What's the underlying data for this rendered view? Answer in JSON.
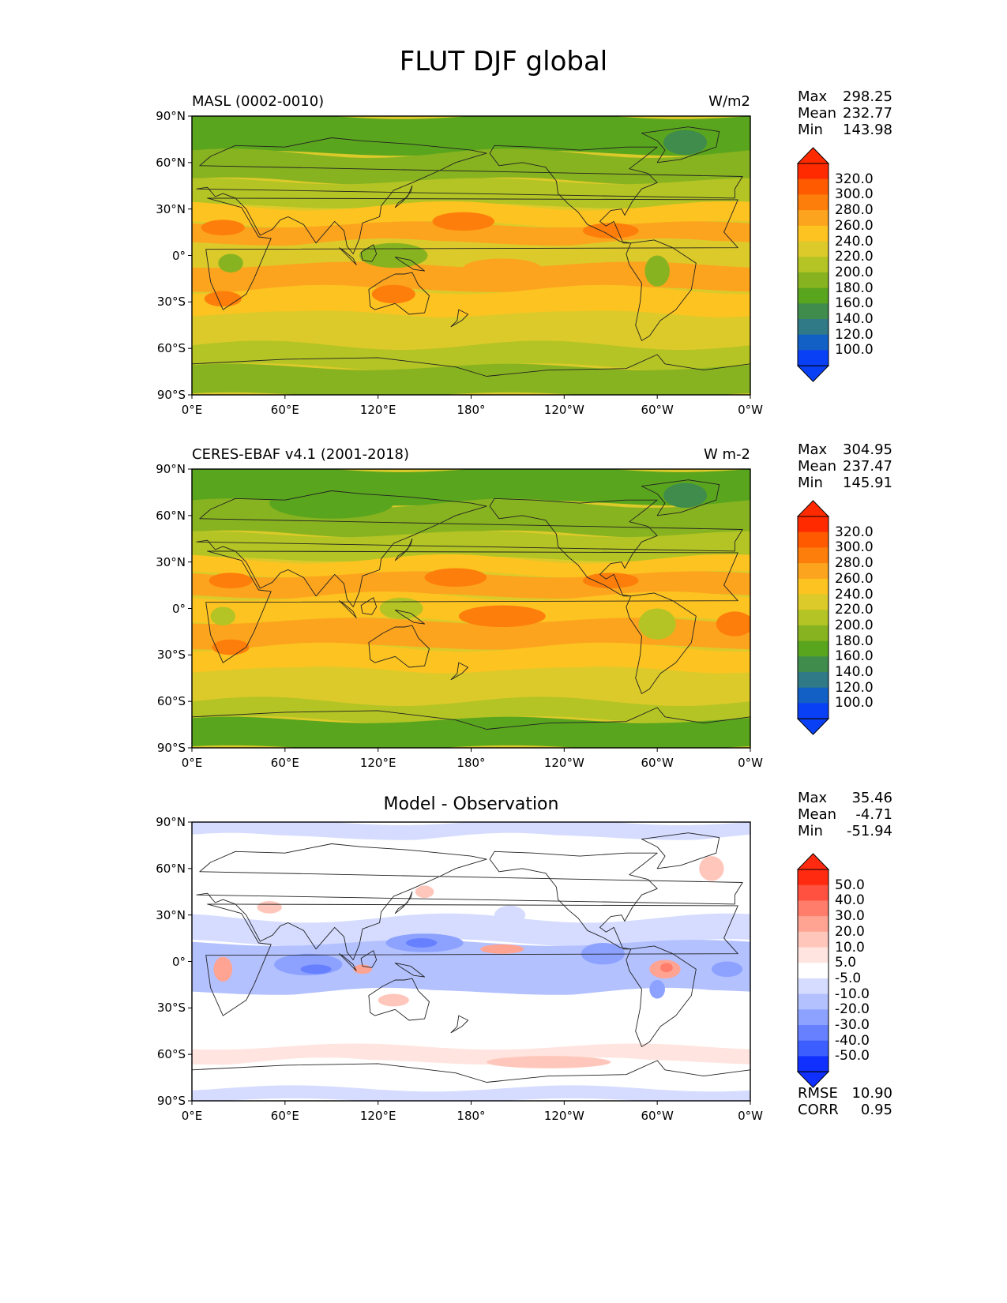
{
  "title": "FLUT DJF global",
  "axes": {
    "lat_ticks": [
      "90°N",
      "60°N",
      "30°N",
      "0°",
      "30°S",
      "60°S",
      "90°S"
    ],
    "lon_ticks": [
      "0°E",
      "60°E",
      "120°E",
      "180°",
      "120°W",
      "60°W",
      "0°W"
    ]
  },
  "panels": [
    {
      "id": "model",
      "left_title": "MASL (0002-0010)",
      "center_title": "",
      "units": "W/m2",
      "stats": [
        {
          "label": "Max",
          "value": "298.25"
        },
        {
          "label": "Mean",
          "value": "232.77"
        },
        {
          "label": "Min",
          "value": "143.98"
        }
      ],
      "colorbar": {
        "labels": [
          "320.0",
          "300.0",
          "280.0",
          "260.0",
          "240.0",
          "220.0",
          "200.0",
          "180.0",
          "160.0",
          "140.0",
          "120.0",
          "100.0"
        ],
        "colors": [
          "#ff2a00",
          "#ff5a00",
          "#fe7e0b",
          "#fca41e",
          "#fdc321",
          "#dcca2a",
          "#b3c424",
          "#88b320",
          "#5aa51e",
          "#3f8c4d",
          "#2f7a86",
          "#1260c6",
          "#0a40f5"
        ],
        "top_extend_color": "#ff2a00",
        "bottom_extend_color": "#0a40f5"
      }
    },
    {
      "id": "obs",
      "left_title": "CERES-EBAF v4.1 (2001-2018)",
      "center_title": "",
      "units": "W m-2",
      "stats": [
        {
          "label": "Max",
          "value": "304.95"
        },
        {
          "label": "Mean",
          "value": "237.47"
        },
        {
          "label": "Min",
          "value": "145.91"
        }
      ],
      "colorbar": {
        "labels": [
          "320.0",
          "300.0",
          "280.0",
          "260.0",
          "240.0",
          "220.0",
          "200.0",
          "180.0",
          "160.0",
          "140.0",
          "120.0",
          "100.0"
        ],
        "colors": [
          "#ff2a00",
          "#ff5a00",
          "#fe7e0b",
          "#fca41e",
          "#fdc321",
          "#dcca2a",
          "#b3c424",
          "#88b320",
          "#5aa51e",
          "#3f8c4d",
          "#2f7a86",
          "#1260c6",
          "#0a40f5"
        ],
        "top_extend_color": "#ff2a00",
        "bottom_extend_color": "#0a40f5"
      }
    },
    {
      "id": "diff",
      "left_title": "",
      "center_title": "Model - Observation",
      "units": "",
      "stats": [
        {
          "label": "Max",
          "value": "35.46"
        },
        {
          "label": "Mean",
          "value": "-4.71"
        },
        {
          "label": "Min",
          "value": "-51.94"
        }
      ],
      "extra_stats": [
        {
          "label": "RMSE",
          "value": "10.90"
        },
        {
          "label": "CORR",
          "value": "0.95"
        }
      ],
      "colorbar": {
        "labels": [
          "50.0",
          "40.0",
          "30.0",
          "20.0",
          "10.0",
          "5.0",
          "-5.0",
          "-10.0",
          "-20.0",
          "-30.0",
          "-40.0",
          "-50.0"
        ],
        "colors": [
          "#ff2a10",
          "#ff5040",
          "#ff7d6a",
          "#ffa393",
          "#ffc7bb",
          "#ffe4df",
          "#ffffff",
          "#d5dcff",
          "#b3c1ff",
          "#8da2ff",
          "#6680ff",
          "#3d5eff",
          "#1030ff"
        ],
        "top_extend_color": "#ff2a10",
        "bottom_extend_color": "#1030ff"
      }
    }
  ]
}
